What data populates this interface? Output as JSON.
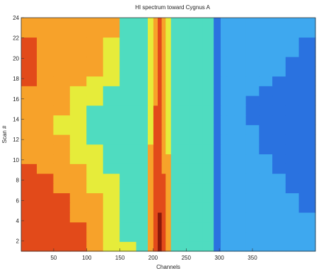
{
  "chart_data": {
    "type": "heatmap",
    "title": "HI spectrum toward Cygnus A",
    "xlabel": "Channels",
    "ylabel": "Scan #",
    "xlim": [
      1,
      445
    ],
    "ylim": [
      1,
      24
    ],
    "x_ticks": [
      50,
      100,
      150,
      200,
      250,
      300,
      350
    ],
    "y_ticks": [
      2,
      4,
      6,
      8,
      10,
      12,
      14,
      16,
      18,
      20,
      22,
      24
    ],
    "colormap": [
      "#1010c8",
      "#2a72e0",
      "#3ea8ef",
      "#4fdcc0",
      "#e6ec3a",
      "#f7a22a",
      "#e24a1a",
      "#8a1a0a"
    ],
    "channel_bins": [
      12,
      37,
      62,
      87,
      112,
      137,
      162,
      187,
      197,
      204,
      210,
      216,
      222,
      232,
      245,
      265,
      285,
      298,
      306,
      316,
      330,
      350,
      370,
      390,
      410,
      430
    ],
    "scans": [
      1,
      2,
      3,
      4,
      5,
      6,
      7,
      8,
      9,
      10,
      11,
      12,
      13,
      14,
      15,
      16,
      17,
      18,
      19,
      20,
      21,
      22,
      23,
      24
    ],
    "level_grid": [
      [
        6,
        6,
        6,
        6,
        5,
        4,
        4,
        3,
        5,
        6,
        7,
        6,
        5,
        3,
        3,
        3,
        3,
        1,
        2,
        2,
        2,
        2,
        2,
        2,
        2,
        2
      ],
      [
        6,
        6,
        6,
        6,
        5,
        4,
        3,
        3,
        5,
        6,
        7,
        6,
        5,
        3,
        3,
        3,
        3,
        1,
        2,
        2,
        2,
        2,
        2,
        2,
        2,
        2
      ],
      [
        6,
        6,
        6,
        6,
        5,
        4,
        3,
        3,
        5,
        6,
        7,
        6,
        5,
        3,
        3,
        3,
        3,
        1,
        2,
        2,
        2,
        2,
        2,
        2,
        2,
        2
      ],
      [
        6,
        6,
        6,
        5,
        5,
        4,
        3,
        3,
        5,
        6,
        7,
        6,
        5,
        3,
        3,
        3,
        3,
        1,
        2,
        2,
        2,
        2,
        2,
        2,
        2,
        2
      ],
      [
        6,
        6,
        6,
        5,
        5,
        4,
        3,
        3,
        5,
        6,
        6,
        6,
        5,
        3,
        3,
        3,
        3,
        1,
        2,
        2,
        2,
        2,
        2,
        2,
        2,
        1
      ],
      [
        6,
        6,
        6,
        5,
        5,
        4,
        3,
        3,
        5,
        6,
        6,
        6,
        5,
        3,
        3,
        3,
        3,
        1,
        2,
        2,
        2,
        2,
        2,
        2,
        2,
        1
      ],
      [
        6,
        6,
        5,
        5,
        4,
        4,
        3,
        3,
        5,
        6,
        6,
        6,
        5,
        3,
        3,
        3,
        3,
        1,
        2,
        2,
        2,
        2,
        2,
        2,
        1,
        1
      ],
      [
        6,
        6,
        5,
        5,
        4,
        4,
        3,
        3,
        5,
        6,
        6,
        6,
        5,
        3,
        3,
        3,
        3,
        1,
        2,
        2,
        2,
        2,
        2,
        2,
        1,
        1
      ],
      [
        6,
        5,
        5,
        5,
        4,
        3,
        3,
        3,
        5,
        6,
        6,
        5,
        5,
        3,
        3,
        3,
        3,
        1,
        2,
        2,
        2,
        2,
        2,
        1,
        1,
        1
      ],
      [
        5,
        5,
        5,
        4,
        4,
        3,
        3,
        3,
        5,
        6,
        6,
        5,
        5,
        3,
        3,
        3,
        3,
        1,
        2,
        2,
        2,
        2,
        2,
        1,
        1,
        1
      ],
      [
        5,
        5,
        5,
        4,
        4,
        3,
        3,
        3,
        5,
        6,
        6,
        5,
        4,
        3,
        3,
        3,
        3,
        1,
        2,
        2,
        2,
        2,
        1,
        1,
        1,
        1
      ],
      [
        5,
        5,
        5,
        4,
        3,
        3,
        3,
        3,
        4,
        6,
        6,
        5,
        4,
        3,
        3,
        3,
        3,
        1,
        2,
        2,
        2,
        2,
        1,
        1,
        1,
        1
      ],
      [
        5,
        5,
        4,
        4,
        3,
        3,
        3,
        3,
        4,
        6,
        6,
        5,
        4,
        3,
        3,
        3,
        3,
        1,
        2,
        2,
        2,
        2,
        1,
        1,
        1,
        1
      ],
      [
        5,
        5,
        4,
        4,
        3,
        3,
        3,
        3,
        4,
        6,
        6,
        5,
        4,
        3,
        3,
        3,
        3,
        1,
        2,
        2,
        2,
        1,
        1,
        1,
        1,
        1
      ],
      [
        5,
        5,
        5,
        4,
        3,
        3,
        3,
        3,
        4,
        6,
        6,
        5,
        4,
        3,
        3,
        3,
        3,
        1,
        2,
        2,
        2,
        1,
        1,
        1,
        1,
        1
      ],
      [
        5,
        5,
        5,
        4,
        4,
        3,
        3,
        3,
        4,
        5,
        6,
        5,
        4,
        3,
        3,
        3,
        3,
        1,
        2,
        2,
        2,
        1,
        1,
        1,
        1,
        1
      ],
      [
        5,
        5,
        5,
        4,
        4,
        3,
        3,
        3,
        4,
        5,
        6,
        5,
        4,
        3,
        3,
        3,
        3,
        1,
        2,
        2,
        2,
        2,
        1,
        1,
        1,
        1
      ],
      [
        6,
        5,
        5,
        5,
        4,
        4,
        3,
        3,
        4,
        5,
        6,
        5,
        4,
        3,
        3,
        3,
        3,
        1,
        2,
        2,
        2,
        2,
        2,
        1,
        1,
        1
      ],
      [
        6,
        5,
        5,
        5,
        5,
        4,
        3,
        3,
        4,
        5,
        6,
        5,
        4,
        3,
        3,
        3,
        3,
        1,
        2,
        2,
        2,
        2,
        2,
        2,
        1,
        1
      ],
      [
        6,
        5,
        5,
        5,
        5,
        4,
        3,
        3,
        4,
        5,
        6,
        5,
        4,
        3,
        3,
        3,
        3,
        1,
        2,
        2,
        2,
        2,
        2,
        2,
        1,
        1
      ],
      [
        6,
        5,
        5,
        5,
        5,
        4,
        3,
        3,
        4,
        5,
        6,
        5,
        4,
        3,
        3,
        3,
        3,
        1,
        2,
        2,
        2,
        2,
        2,
        2,
        2,
        1
      ],
      [
        6,
        5,
        5,
        5,
        5,
        4,
        3,
        3,
        4,
        5,
        6,
        5,
        4,
        3,
        3,
        3,
        3,
        1,
        2,
        2,
        2,
        2,
        2,
        2,
        2,
        1
      ],
      [
        5,
        5,
        5,
        5,
        5,
        5,
        3,
        3,
        4,
        5,
        6,
        5,
        4,
        3,
        3,
        3,
        3,
        1,
        2,
        2,
        2,
        2,
        2,
        2,
        2,
        2
      ],
      [
        5,
        5,
        5,
        5,
        5,
        5,
        3,
        3,
        4,
        5,
        6,
        5,
        4,
        3,
        3,
        3,
        3,
        1,
        2,
        2,
        2,
        2,
        2,
        2,
        2,
        2
      ]
    ]
  }
}
